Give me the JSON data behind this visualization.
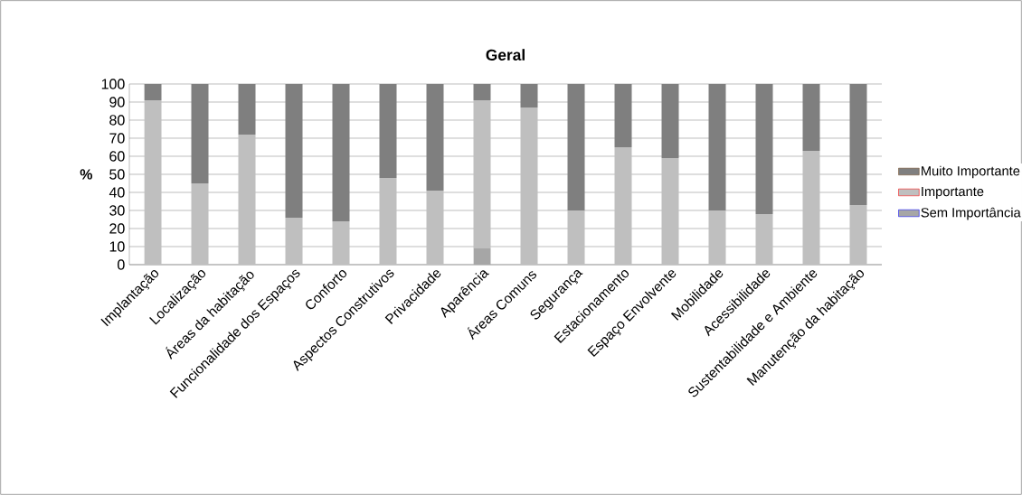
{
  "chart_data": {
    "type": "bar",
    "title": "Geral",
    "ylabel": "%",
    "stacked": true,
    "grid": "y",
    "legend": "right",
    "categories": [
      "Implantação",
      "Localização",
      "Áreas da habitação",
      "Funcionalidade dos Espaços",
      "Conforto",
      "Aspectos Construtivos",
      "Privacidade",
      "Aparência",
      "Áreas Comuns",
      "Segurança",
      "Estacionamento",
      "Espaço Envolvente",
      "Mobilidade",
      "Acessibilidade",
      "Sustentabilidade e Ambiente",
      "Manutenção da habitação"
    ],
    "series": [
      {
        "name": "Sem Importância",
        "color": "#a6a6a6",
        "values": [
          0,
          0,
          0,
          0,
          0,
          0,
          0,
          9,
          0,
          0,
          0,
          0,
          0,
          0,
          0,
          0
        ]
      },
      {
        "name": "Importante",
        "color": "#bfbfbf",
        "values": [
          91,
          45,
          72,
          26,
          24,
          48,
          41,
          82,
          87,
          30,
          65,
          59,
          30,
          28,
          63,
          33
        ]
      },
      {
        "name": "Muito Importante",
        "color": "#7f7f7f",
        "values": [
          9,
          55,
          28,
          74,
          76,
          52,
          59,
          9,
          13,
          70,
          35,
          41,
          70,
          72,
          37,
          67
        ]
      }
    ],
    "ylim": [
      0,
      100
    ],
    "yticks": [
      0,
      10,
      20,
      30,
      40,
      50,
      60,
      70,
      80,
      90,
      100
    ]
  }
}
